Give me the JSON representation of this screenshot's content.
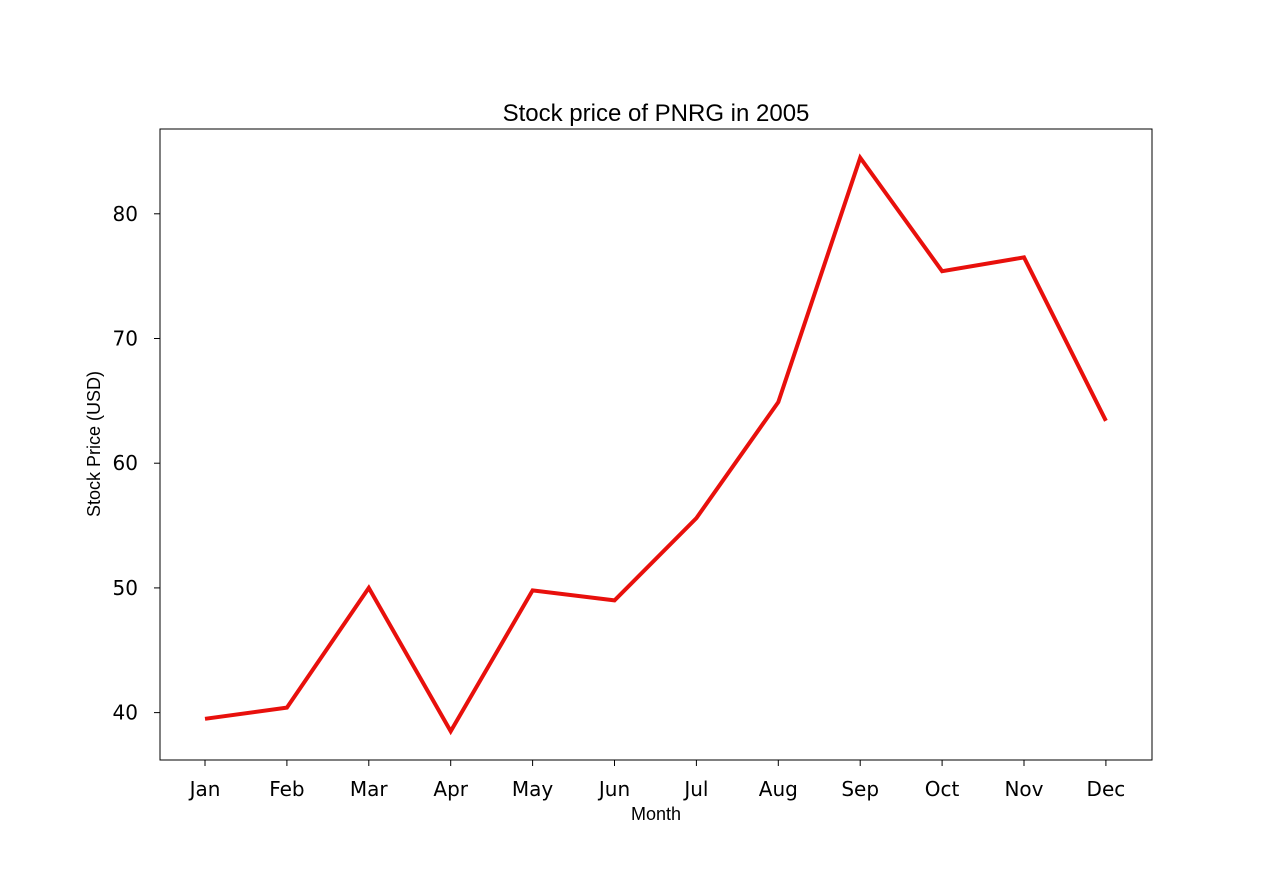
{
  "chart_data": {
    "type": "line",
    "title": "Stock price of PNRG in 2005",
    "xlabel": "Month",
    "ylabel": "Stock Price (USD)",
    "categories": [
      "Jan",
      "Feb",
      "Mar",
      "Apr",
      "May",
      "Jun",
      "Jul",
      "Aug",
      "Sep",
      "Oct",
      "Nov",
      "Dec"
    ],
    "series": [
      {
        "values": [
          39.5,
          40.4,
          50.0,
          38.5,
          49.8,
          49.0,
          55.6,
          64.9,
          84.5,
          75.4,
          76.5,
          63.4
        ],
        "color": "#e8100c"
      }
    ],
    "yticks": [
      40,
      50,
      60,
      70,
      80
    ],
    "ylim": [
      36.2,
      86.8
    ],
    "grid": false,
    "legend": "none"
  }
}
